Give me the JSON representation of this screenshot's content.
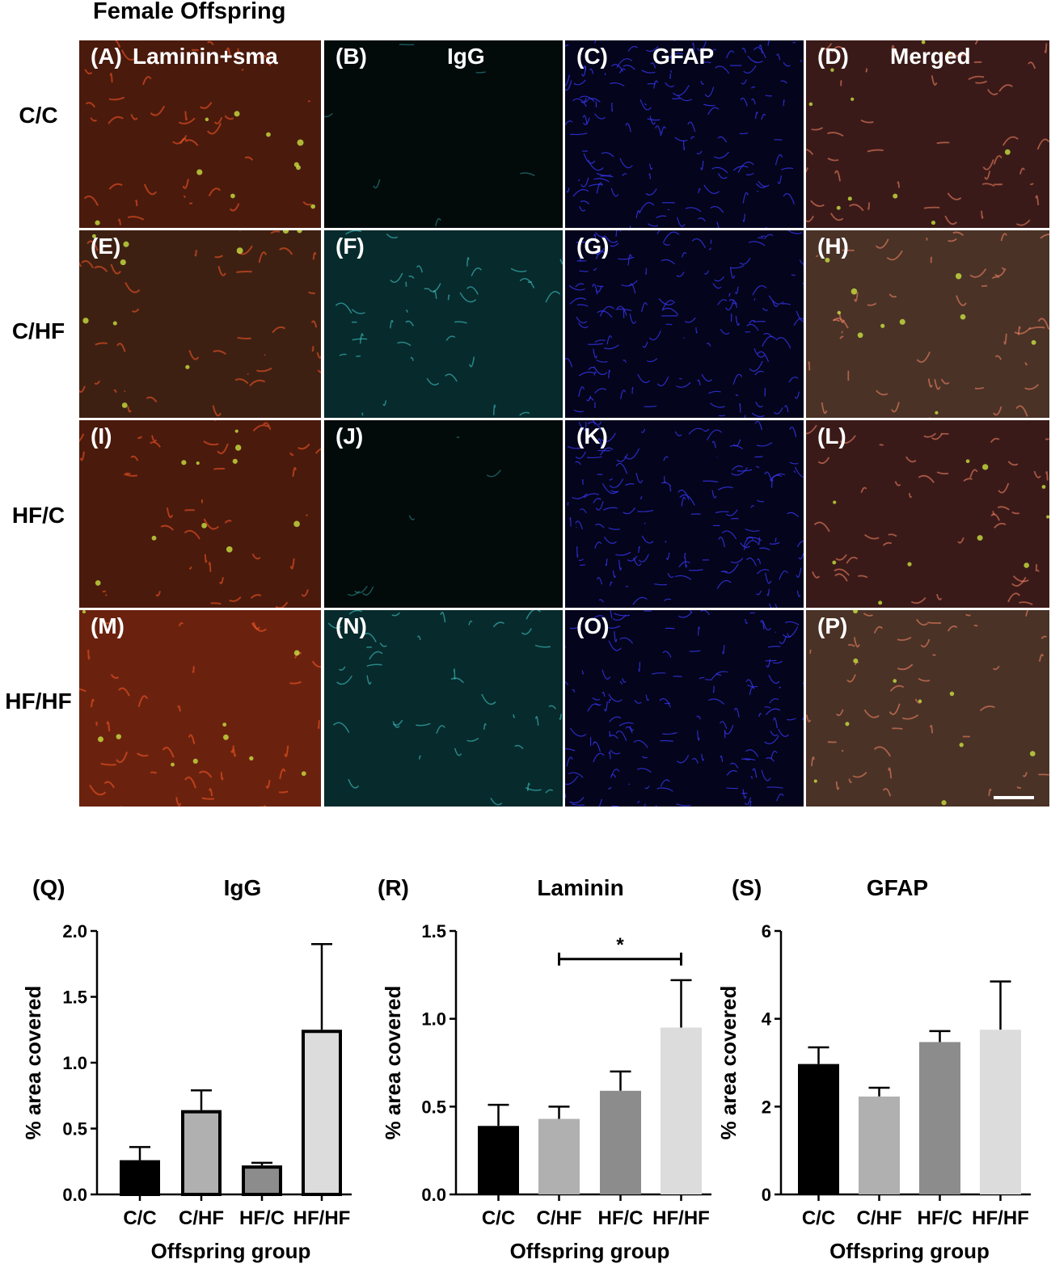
{
  "figure_title": "Female Offspring",
  "row_labels": [
    "C/C",
    "C/HF",
    "HF/C",
    "HF/HF"
  ],
  "panels": [
    {
      "label": "(A)",
      "channel": "Laminin+sma",
      "kind": "laminin"
    },
    {
      "label": "(B)",
      "channel": "IgG",
      "kind": "igg_low"
    },
    {
      "label": "(C)",
      "channel": "GFAP",
      "kind": "gfap"
    },
    {
      "label": "(D)",
      "channel": "Merged",
      "kind": "merged"
    },
    {
      "label": "(E)",
      "channel": "",
      "kind": "laminin_brown"
    },
    {
      "label": "(F)",
      "channel": "",
      "kind": "igg_high"
    },
    {
      "label": "(G)",
      "channel": "",
      "kind": "gfap"
    },
    {
      "label": "(H)",
      "channel": "",
      "kind": "merged_brown"
    },
    {
      "label": "(I)",
      "channel": "",
      "kind": "laminin"
    },
    {
      "label": "(J)",
      "channel": "",
      "kind": "igg_low"
    },
    {
      "label": "(K)",
      "channel": "",
      "kind": "gfap"
    },
    {
      "label": "(L)",
      "channel": "",
      "kind": "merged"
    },
    {
      "label": "(M)",
      "channel": "",
      "kind": "laminin_bright"
    },
    {
      "label": "(N)",
      "channel": "",
      "kind": "igg_high"
    },
    {
      "label": "(O)",
      "channel": "",
      "kind": "gfap"
    },
    {
      "label": "(P)",
      "channel": "",
      "kind": "merged_brown"
    }
  ],
  "colors": {
    "laminin_bg": "#4a1a0c",
    "igg_bg": "#020a0a",
    "gfap_bg": "#04041c",
    "merged_bg": "#3a1a18",
    "bar_cc": "#000000",
    "bar_chf": "#b0b0b0",
    "bar_hfc": "#8c8c8c",
    "bar_hfhf": "#dcdcdc"
  },
  "chart_data": [
    {
      "type": "bar",
      "panel_label": "(Q)",
      "title": "IgG",
      "xlabel": "Offspring group",
      "ylabel": "% area covered",
      "categories": [
        "C/C",
        "C/HF",
        "HF/C",
        "HF/HF"
      ],
      "values": [
        0.26,
        0.64,
        0.22,
        1.25
      ],
      "errors": [
        0.1,
        0.15,
        0.02,
        0.65
      ],
      "ylim": [
        0,
        2.0
      ],
      "yticks": [
        "0.0",
        "0.5",
        "1.0",
        "1.5",
        "2.0"
      ],
      "outlined_bars": true,
      "significance": null
    },
    {
      "type": "bar",
      "panel_label": "(R)",
      "title": "Laminin",
      "xlabel": "Offspring group",
      "ylabel": "% area covered",
      "categories": [
        "C/C",
        "C/HF",
        "HF/C",
        "HF/HF"
      ],
      "values": [
        0.39,
        0.43,
        0.59,
        0.95
      ],
      "errors": [
        0.12,
        0.07,
        0.11,
        0.27
      ],
      "ylim": [
        0,
        1.5
      ],
      "yticks": [
        "0.0",
        "0.5",
        "1.0",
        "1.5"
      ],
      "outlined_bars": false,
      "significance": {
        "from": 1,
        "to": 3,
        "label": "*",
        "y": 1.34
      }
    },
    {
      "type": "bar",
      "panel_label": "(S)",
      "title": "GFAP",
      "xlabel": "Offspring group",
      "ylabel": "% area covered",
      "categories": [
        "C/C",
        "C/HF",
        "HF/C",
        "HF/HF"
      ],
      "values": [
        2.97,
        2.23,
        3.47,
        3.75
      ],
      "errors": [
        0.38,
        0.2,
        0.25,
        1.1
      ],
      "ylim": [
        0,
        6
      ],
      "yticks": [
        "0",
        "2",
        "4",
        "6"
      ],
      "outlined_bars": false,
      "significance": null
    }
  ]
}
